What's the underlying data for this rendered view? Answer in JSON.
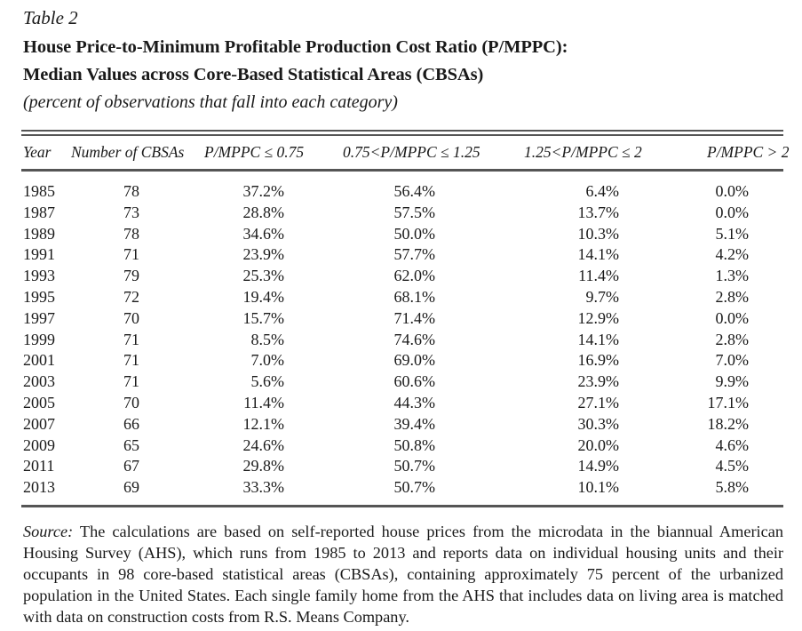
{
  "table_label": "Table 2",
  "title_line1": "House Price-to-Minimum Profitable Production Cost Ratio (P/MPPC):",
  "title_line2": "Median Values across Core-Based Statistical Areas (CBSAs)",
  "subtitle": "(percent of observations that fall into each category)",
  "headers": [
    "Year",
    "Number of CBSAs",
    "P/MPPC ≤ 0.75",
    "0.75<P/MPPC ≤ 1.25",
    "1.25<P/MPPC ≤ 2",
    "P/MPPC > 2"
  ],
  "rows": [
    [
      "1985",
      "78",
      "37.2%",
      "56.4%",
      "6.4%",
      "0.0%"
    ],
    [
      "1987",
      "73",
      "28.8%",
      "57.5%",
      "13.7%",
      "0.0%"
    ],
    [
      "1989",
      "78",
      "34.6%",
      "50.0%",
      "10.3%",
      "5.1%"
    ],
    [
      "1991",
      "71",
      "23.9%",
      "57.7%",
      "14.1%",
      "4.2%"
    ],
    [
      "1993",
      "79",
      "25.3%",
      "62.0%",
      "11.4%",
      "1.3%"
    ],
    [
      "1995",
      "72",
      "19.4%",
      "68.1%",
      "9.7%",
      "2.8%"
    ],
    [
      "1997",
      "70",
      "15.7%",
      "71.4%",
      "12.9%",
      "0.0%"
    ],
    [
      "1999",
      "71",
      "8.5%",
      "74.6%",
      "14.1%",
      "2.8%"
    ],
    [
      "2001",
      "71",
      "7.0%",
      "69.0%",
      "16.9%",
      "7.0%"
    ],
    [
      "2003",
      "71",
      "5.6%",
      "60.6%",
      "23.9%",
      "9.9%"
    ],
    [
      "2005",
      "70",
      "11.4%",
      "44.3%",
      "27.1%",
      "17.1%"
    ],
    [
      "2007",
      "66",
      "12.1%",
      "39.4%",
      "30.3%",
      "18.2%"
    ],
    [
      "2009",
      "65",
      "24.6%",
      "50.8%",
      "20.0%",
      "4.6%"
    ],
    [
      "2011",
      "67",
      "29.8%",
      "50.7%",
      "14.9%",
      "4.5%"
    ],
    [
      "2013",
      "69",
      "33.3%",
      "50.7%",
      "10.1%",
      "5.8%"
    ]
  ],
  "source_label": "Source:",
  "source_text": "The calculations are based on self-reported house prices from the microdata in the biannual American Housing Survey (AHS), which runs from 1985 to 2013 and reports data on individual housing units and their occupants in 98 core-based statistical areas (CBSAs), containing approximately 75 percent of the urbanized population in the United States. Each single family home from the AHS that includes data on living area is matched with data on construction costs from R.S. Means Company."
}
